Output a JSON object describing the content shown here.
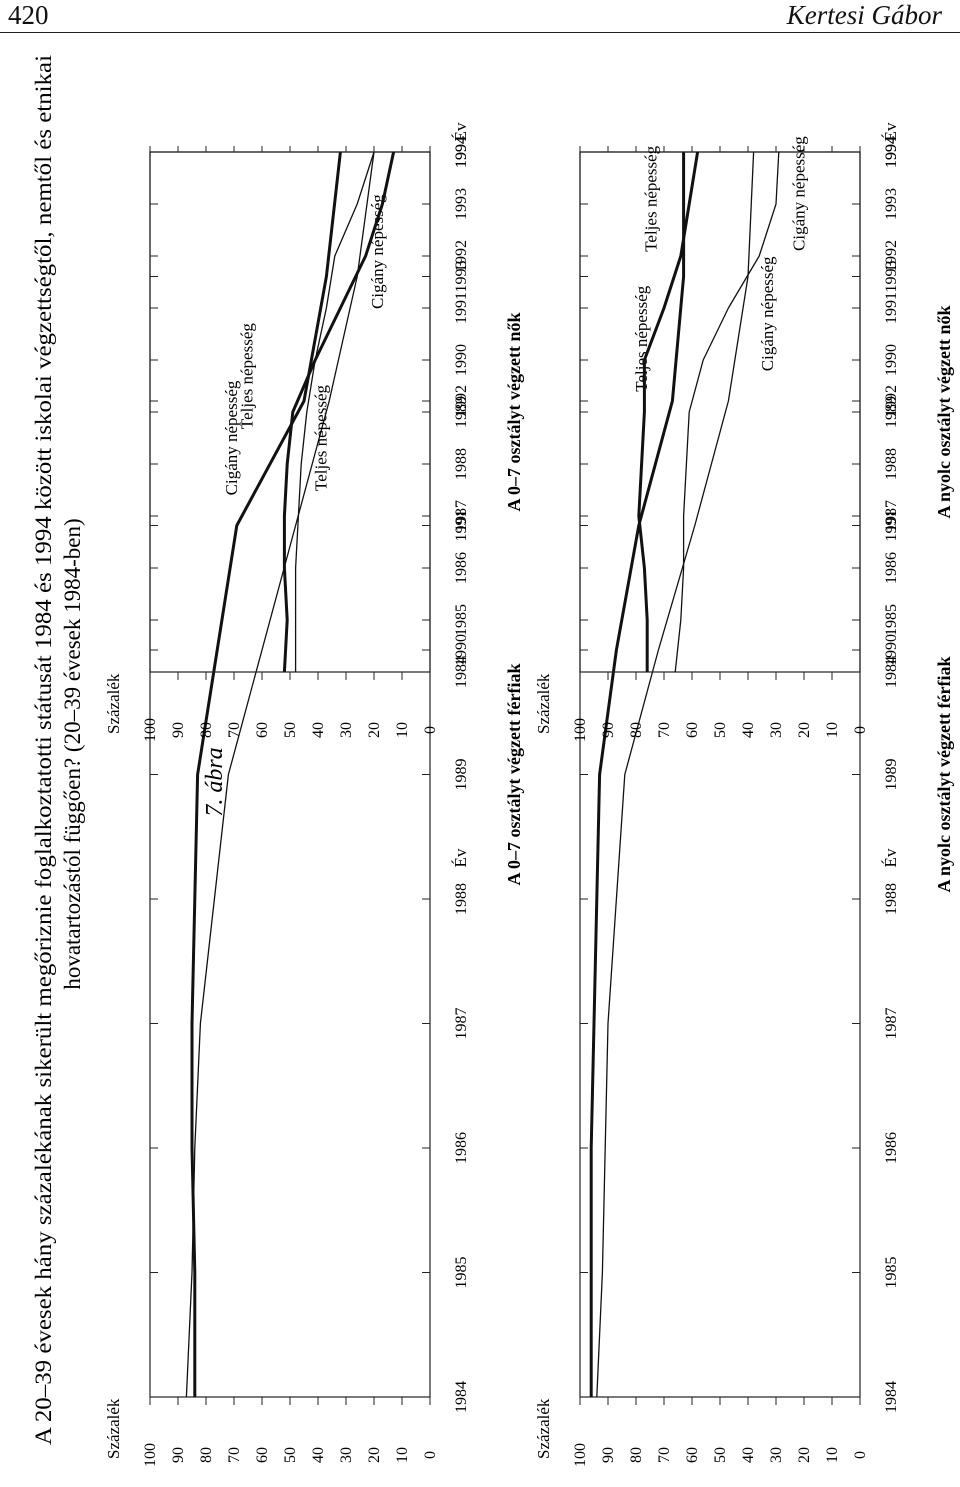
{
  "header": {
    "page_number": "420",
    "running_head": "Kertesi Gábor"
  },
  "figure": {
    "label": "7. ábra",
    "title_line1": "A 20–39 évesek hány százalékának sikerült megőriznie foglalkoztatotti státusát 1984 és 1994 között iskolai végzettségtől, nemtől és etnikai",
    "title_line2": "hovatartozástól függően? (20–39 évesek 1984-ben)"
  },
  "chart_data": [
    {
      "id": "top-left",
      "type": "line",
      "title": "A 0–7 osztályt végzett férfiak",
      "xlabel": "Év",
      "ylabel": "Százalék",
      "x": [
        "1984",
        "1985",
        "1986",
        "1987",
        "1988",
        "1989",
        "1990",
        "1991",
        "1992",
        "1993",
        "1994"
      ],
      "ylim": [
        0,
        100
      ],
      "yticks": [
        "0",
        "10",
        "20",
        "30",
        "40",
        "50",
        "60",
        "70",
        "80",
        "90",
        "100"
      ],
      "grid": false,
      "series": [
        {
          "name": "Teljes népesség",
          "style": "thick",
          "values": [
            84,
            84,
            85,
            85,
            84,
            83,
            76,
            69,
            45,
            37,
            32
          ]
        },
        {
          "name": "Cigány népesség",
          "style": "thin",
          "values": [
            87,
            85,
            84,
            82,
            77,
            72,
            60,
            48,
            36,
            26,
            20
          ]
        }
      ]
    },
    {
      "id": "top-right",
      "type": "line",
      "title": "A 0–7 osztályt végzett nők",
      "xlabel": "Év",
      "ylabel": "Százalék",
      "x": [
        "1984",
        "1985",
        "1986",
        "1987",
        "1988",
        "1989",
        "1990",
        "1991",
        "1992",
        "1993",
        "1994"
      ],
      "ylim": [
        0,
        100
      ],
      "yticks": [
        "0",
        "10",
        "20",
        "30",
        "40",
        "50",
        "60",
        "70",
        "80",
        "90",
        "100"
      ],
      "grid": false,
      "series": [
        {
          "name": "Cigány népesség",
          "style": "thick",
          "values": [
            52,
            51,
            52,
            52,
            51,
            49,
            41,
            32,
            23,
            17,
            13
          ]
        },
        {
          "name": "Teljes népesség",
          "style": "thin",
          "values": [
            48,
            48,
            48,
            47,
            46,
            44,
            41,
            37,
            34,
            26,
            20
          ]
        }
      ]
    },
    {
      "id": "bottom-left",
      "type": "line",
      "title": "A nyolc osztályt végzett férfiak",
      "xlabel": "Év",
      "ylabel": "Százalék",
      "x": [
        "1984",
        "1985",
        "1986",
        "1987",
        "1988",
        "1989",
        "1990",
        "1991",
        "1992",
        "1993",
        "1994"
      ],
      "ylim": [
        0,
        100
      ],
      "yticks": [
        "0",
        "10",
        "20",
        "30",
        "40",
        "50",
        "60",
        "70",
        "80",
        "90",
        "100"
      ],
      "grid": false,
      "series": [
        {
          "name": "Teljes népesség",
          "style": "thick",
          "values": [
            96,
            96,
            96,
            95,
            94,
            93,
            87,
            79,
            67,
            63,
            63
          ]
        },
        {
          "name": "Cigány népesség",
          "style": "thin",
          "values": [
            94,
            92,
            91,
            90,
            87,
            84,
            72,
            59,
            47,
            40,
            38
          ]
        }
      ]
    },
    {
      "id": "bottom-right",
      "type": "line",
      "title": "A nyolc osztályt végzett nők",
      "xlabel": "Év",
      "ylabel": "Százalék",
      "x": [
        "1984",
        "1985",
        "1986",
        "1987",
        "1988",
        "1989",
        "1990",
        "1991",
        "1992",
        "1993",
        "1994"
      ],
      "ylim": [
        0,
        100
      ],
      "yticks": [
        "0",
        "10",
        "20",
        "30",
        "40",
        "50",
        "60",
        "70",
        "80",
        "90",
        "100"
      ],
      "grid": false,
      "series": [
        {
          "name": "Teljes népesség",
          "style": "thick",
          "values": [
            76,
            76,
            77,
            79,
            78,
            77,
            77,
            70,
            64,
            61,
            58
          ]
        },
        {
          "name": "Cigány népesség",
          "style": "thin",
          "values": [
            66,
            64,
            63,
            63,
            62,
            61,
            56,
            47,
            36,
            30,
            29
          ]
        }
      ]
    }
  ]
}
